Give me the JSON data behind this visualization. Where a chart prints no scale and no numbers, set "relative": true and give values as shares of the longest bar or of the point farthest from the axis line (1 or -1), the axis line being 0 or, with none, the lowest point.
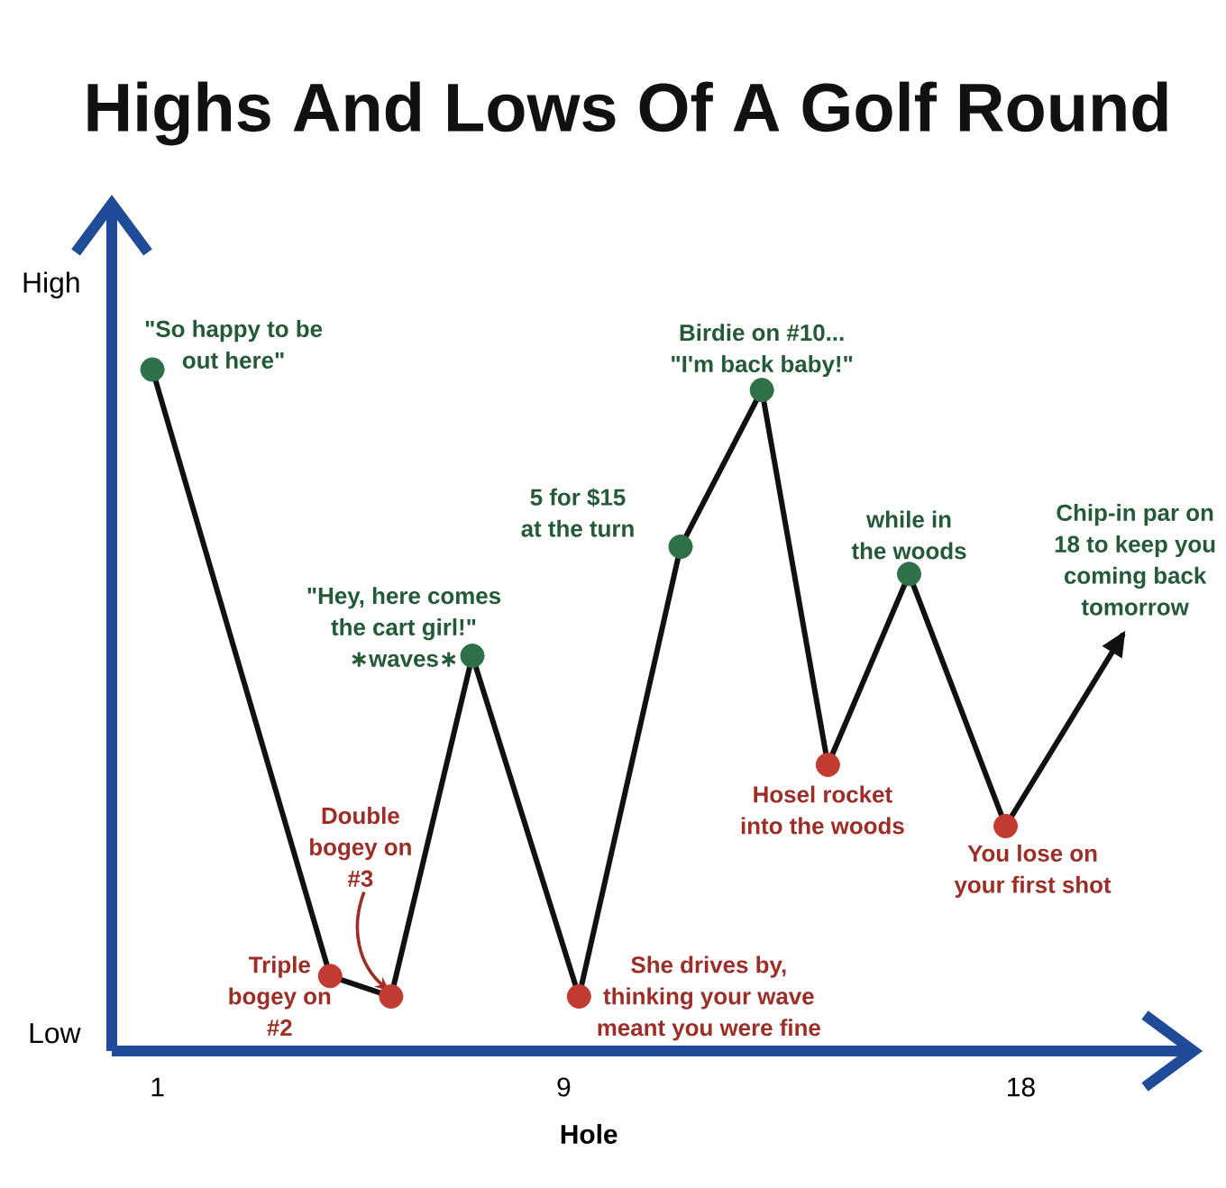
{
  "chart_data": {
    "type": "line",
    "title": "Highs And Lows Of A Golf Round",
    "xlabel": "Hole",
    "relative": true,
    "x": [
      0.9,
      4.4,
      5.6,
      7.2,
      9.3,
      11.3,
      12.9,
      14.2,
      15.8,
      17.7,
      20.0
    ],
    "xlim": [
      0.1,
      21.4
    ],
    "xticks": [
      1,
      9,
      18
    ],
    "marker": "circle",
    "series": [
      {
        "color": "#111111",
        "values": [
          1,
          0.11,
          0.08,
          0.58,
          0.08,
          0.74,
          0.97,
          0.42,
          0.7,
          0.33,
          0.61
        ],
        "colors": [
          "#2e7047",
          "#c23b32",
          "#c23b32",
          "#2e7047",
          "#c23b32",
          "#2e7047",
          "#2e7047",
          "#c23b32",
          "#2e7047",
          "#c23b32",
          null
        ]
      }
    ],
    "annotations": [
      "High",
      "Low",
      {
        "text": "\"So happy to be out here\"",
        "x": 0.9,
        "y": 1
      },
      {
        "text": "Triple bogey on #2",
        "x": 4.4,
        "y": 0.11
      },
      {
        "text": "Double bogey on #3",
        "x": 5.6,
        "y": 0.08
      },
      {
        "text": "\"Hey, here comes the cart girl!\" ∗waves∗",
        "x": 7.2,
        "y": 0.58
      },
      {
        "text": "She drives by, thinking your wave meant you were fine",
        "x": 9.3,
        "y": 0.08
      },
      {
        "text": "5 for $15 at the turn",
        "x": 11.3,
        "y": 0.74
      },
      {
        "text": "Birdie on #10... \"I'm back baby!\"",
        "x": 12.9,
        "y": 0.97
      },
      {
        "text": "Hosel rocket into the woods",
        "x": 14.2,
        "y": 0.42
      },
      {
        "text": "while in the woods",
        "x": 15.8,
        "y": 0.7
      },
      {
        "text": "You lose on your first shot",
        "x": 17.7,
        "y": 0.33
      },
      {
        "text": "Chip-in par on 18 to keep you coming back tomorrow",
        "x": 20.0,
        "y": 0.61
      }
    ]
  }
}
